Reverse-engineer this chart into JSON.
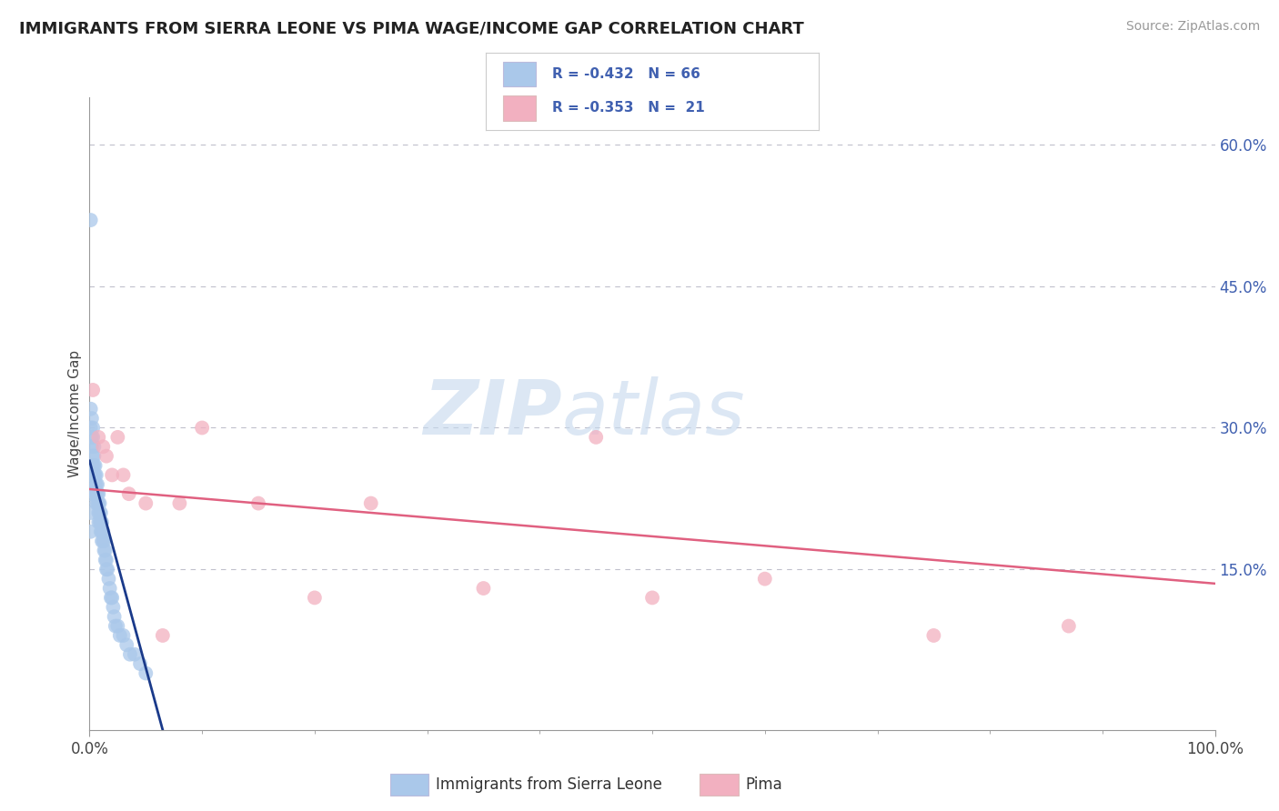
{
  "title": "IMMIGRANTS FROM SIERRA LEONE VS PIMA WAGE/INCOME GAP CORRELATION CHART",
  "source": "Source: ZipAtlas.com",
  "ylabel": "Wage/Income Gap",
  "xlim": [
    0.0,
    1.0
  ],
  "ylim": [
    -0.02,
    0.65
  ],
  "xtick_labels": [
    "0.0%",
    "100.0%"
  ],
  "ytick_labels_right": [
    "60.0%",
    "45.0%",
    "30.0%",
    "15.0%"
  ],
  "ytick_vals_right": [
    0.6,
    0.45,
    0.3,
    0.15
  ],
  "legend_r1": "R = -0.432   N = 66",
  "legend_r2": "R = -0.353   N =  21",
  "legend_label1": "Immigrants from Sierra Leone",
  "legend_label2": "Pima",
  "blue_color": "#aac8ea",
  "pink_color": "#f2b0c0",
  "line_blue": "#1a3a8a",
  "line_pink": "#e06080",
  "text_color": "#4060b0",
  "watermark_zip": "ZIP",
  "watermark_atlas": "atlas",
  "blue_scatter_x": [
    0.001,
    0.001,
    0.001,
    0.002,
    0.002,
    0.002,
    0.003,
    0.003,
    0.003,
    0.003,
    0.004,
    0.004,
    0.004,
    0.004,
    0.005,
    0.005,
    0.005,
    0.005,
    0.006,
    0.006,
    0.006,
    0.006,
    0.007,
    0.007,
    0.007,
    0.008,
    0.008,
    0.008,
    0.008,
    0.009,
    0.009,
    0.009,
    0.01,
    0.01,
    0.01,
    0.011,
    0.011,
    0.011,
    0.012,
    0.012,
    0.013,
    0.013,
    0.014,
    0.014,
    0.015,
    0.015,
    0.016,
    0.017,
    0.018,
    0.019,
    0.02,
    0.021,
    0.022,
    0.023,
    0.025,
    0.027,
    0.03,
    0.033,
    0.036,
    0.04,
    0.045,
    0.05,
    0.001,
    0.001,
    0.001,
    0.001
  ],
  "blue_scatter_y": [
    0.52,
    0.32,
    0.3,
    0.31,
    0.29,
    0.28,
    0.3,
    0.29,
    0.27,
    0.26,
    0.28,
    0.27,
    0.26,
    0.25,
    0.26,
    0.25,
    0.24,
    0.23,
    0.25,
    0.24,
    0.23,
    0.22,
    0.24,
    0.23,
    0.22,
    0.23,
    0.22,
    0.21,
    0.2,
    0.22,
    0.21,
    0.2,
    0.21,
    0.2,
    0.19,
    0.2,
    0.19,
    0.18,
    0.19,
    0.18,
    0.18,
    0.17,
    0.17,
    0.16,
    0.16,
    0.15,
    0.15,
    0.14,
    0.13,
    0.12,
    0.12,
    0.11,
    0.1,
    0.09,
    0.09,
    0.08,
    0.08,
    0.07,
    0.06,
    0.06,
    0.05,
    0.04,
    0.25,
    0.23,
    0.21,
    0.19
  ],
  "pink_scatter_x": [
    0.003,
    0.008,
    0.012,
    0.015,
    0.02,
    0.025,
    0.03,
    0.035,
    0.05,
    0.065,
    0.08,
    0.1,
    0.15,
    0.2,
    0.25,
    0.35,
    0.45,
    0.5,
    0.6,
    0.75,
    0.87
  ],
  "pink_scatter_y": [
    0.34,
    0.29,
    0.28,
    0.27,
    0.25,
    0.29,
    0.25,
    0.23,
    0.22,
    0.08,
    0.22,
    0.3,
    0.22,
    0.12,
    0.22,
    0.13,
    0.29,
    0.12,
    0.14,
    0.08,
    0.09
  ],
  "blue_line_x": [
    0.0,
    0.065
  ],
  "blue_line_y": [
    0.265,
    -0.02
  ],
  "pink_line_x": [
    0.0,
    1.0
  ],
  "pink_line_y": [
    0.235,
    0.135
  ]
}
